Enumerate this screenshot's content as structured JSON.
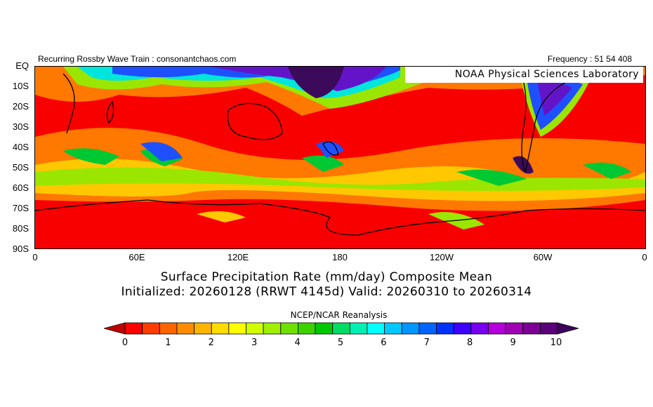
{
  "header": {
    "left": "Recurring Rossby Wave Train : consonantchaos.com",
    "right": "Frequency : 51 54 408",
    "org": "NOAA Physical Sciences Laboratory"
  },
  "map": {
    "lat_labels": [
      "EQ",
      "10S",
      "20S",
      "30S",
      "40S",
      "50S",
      "60S",
      "70S",
      "80S",
      "90S"
    ],
    "lon_labels": [
      "0",
      "60E",
      "120E",
      "180",
      "120W",
      "60W",
      "0"
    ]
  },
  "title": {
    "line1": "Surface Precipitation Rate (mm/day) Composite Mean",
    "line2": "Initialized: 20260128 (RRWT 4145d) Valid: 20260310 to 20260314"
  },
  "source": "NCEP/NCAR Reanalysis",
  "colorbar": {
    "labels": [
      "0",
      "1",
      "2",
      "3",
      "4",
      "5",
      "6",
      "7",
      "8",
      "9",
      "10"
    ],
    "colors": [
      "#c00000",
      "#ff0000",
      "#ff3c00",
      "#ff6400",
      "#ff8c00",
      "#ffb400",
      "#ffdc00",
      "#ffff00",
      "#d2ff00",
      "#a0f000",
      "#6ee000",
      "#3cd200",
      "#00c800",
      "#00dc64",
      "#00f0b4",
      "#00ffff",
      "#00c8ff",
      "#0096ff",
      "#0064ff",
      "#0032ff",
      "#3c00ff",
      "#7800f0",
      "#b400dc",
      "#a000b4",
      "#7d0096",
      "#5a0078",
      "#3c005a"
    ],
    "units": "mm/day"
  },
  "palette": {
    "base": "#f90000",
    "orange": "#ff7800",
    "yellow": "#ffc800",
    "lime": "#9be600",
    "green": "#00c832",
    "cyan": "#00e6dc",
    "blue": "#1e50ff",
    "purple": "#6414c8",
    "dark_purple": "#3c0a5a",
    "coast": "#000000"
  }
}
